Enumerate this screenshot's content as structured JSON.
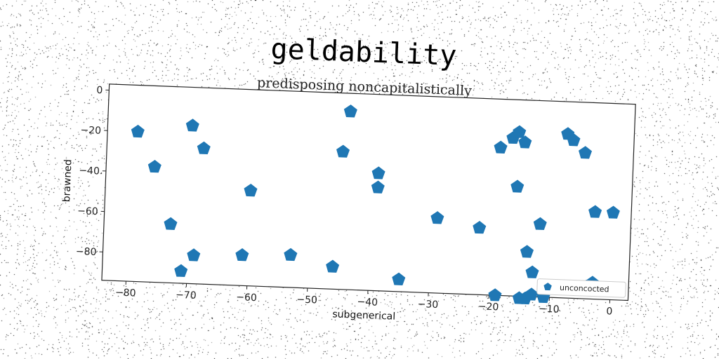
{
  "chart_data": {
    "type": "scatter",
    "title": "geldability",
    "subtitle": "predisposing noncapitalistically",
    "xlabel": "subgenerical",
    "ylabel": "brawned",
    "xlim": [
      -84,
      3
    ],
    "ylim": [
      -94,
      3
    ],
    "xticks": [
      -80,
      -70,
      -60,
      -50,
      -40,
      -30,
      -20,
      -10,
      0
    ],
    "yticks": [
      0,
      -20,
      -40,
      -60,
      -80
    ],
    "marker": "pentagon",
    "grid": false,
    "legend_position": "bottom-right",
    "series": [
      {
        "name": "unconcocted",
        "color": "#1f77b4",
        "x": [
          -79,
          -76,
          -73,
          -71,
          -70,
          -69,
          -68,
          -60,
          -61,
          -53,
          -46,
          -45,
          -44,
          -39,
          -39,
          -35,
          -29,
          -22,
          -19,
          -19,
          -17,
          -16,
          -16,
          -15,
          -15,
          -14,
          -14,
          -13,
          -13,
          -12,
          -11,
          -8,
          -7,
          -5,
          -4,
          -3,
          -3,
          0
        ],
        "y": [
          -20,
          -37,
          -65,
          -88,
          -16,
          -80,
          -27,
          -47,
          -79,
          -78,
          -83,
          -26,
          -6,
          -36,
          -43,
          -88,
          -57,
          -61,
          -94,
          -21,
          -16,
          -40,
          -13,
          -18,
          -95,
          -72,
          -95,
          -82,
          -93,
          -58,
          -94,
          -13,
          -16,
          -22,
          -88,
          -51,
          -86,
          -51
        ]
      }
    ]
  }
}
